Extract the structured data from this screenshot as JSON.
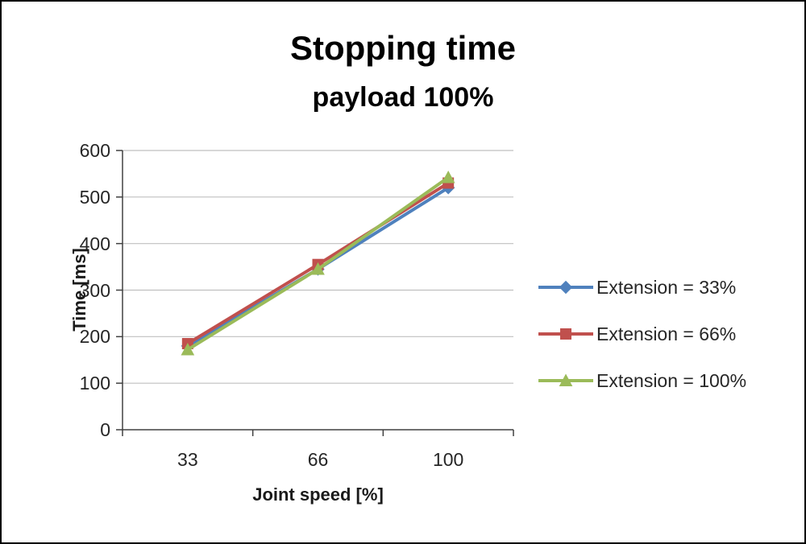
{
  "chart_data": {
    "type": "line",
    "title": "Stopping time",
    "subtitle": "payload 100%",
    "xlabel": "Joint speed [%]",
    "ylabel": "Time [ms]",
    "categories": [
      "33",
      "66",
      "100"
    ],
    "ylim": [
      0,
      600
    ],
    "yticks": [
      0,
      100,
      200,
      300,
      400,
      500,
      600
    ],
    "grid": true,
    "legend_position": "right",
    "series": [
      {
        "name": "Extension = 33%",
        "values": [
          180,
          345,
          520
        ],
        "color": "#4F81BD",
        "marker": "diamond"
      },
      {
        "name": "Extension = 66%",
        "values": [
          185,
          355,
          530
        ],
        "color": "#C0504D",
        "marker": "square"
      },
      {
        "name": "Extension = 100%",
        "values": [
          172,
          345,
          542
        ],
        "color": "#9BBB59",
        "marker": "triangle"
      }
    ]
  }
}
